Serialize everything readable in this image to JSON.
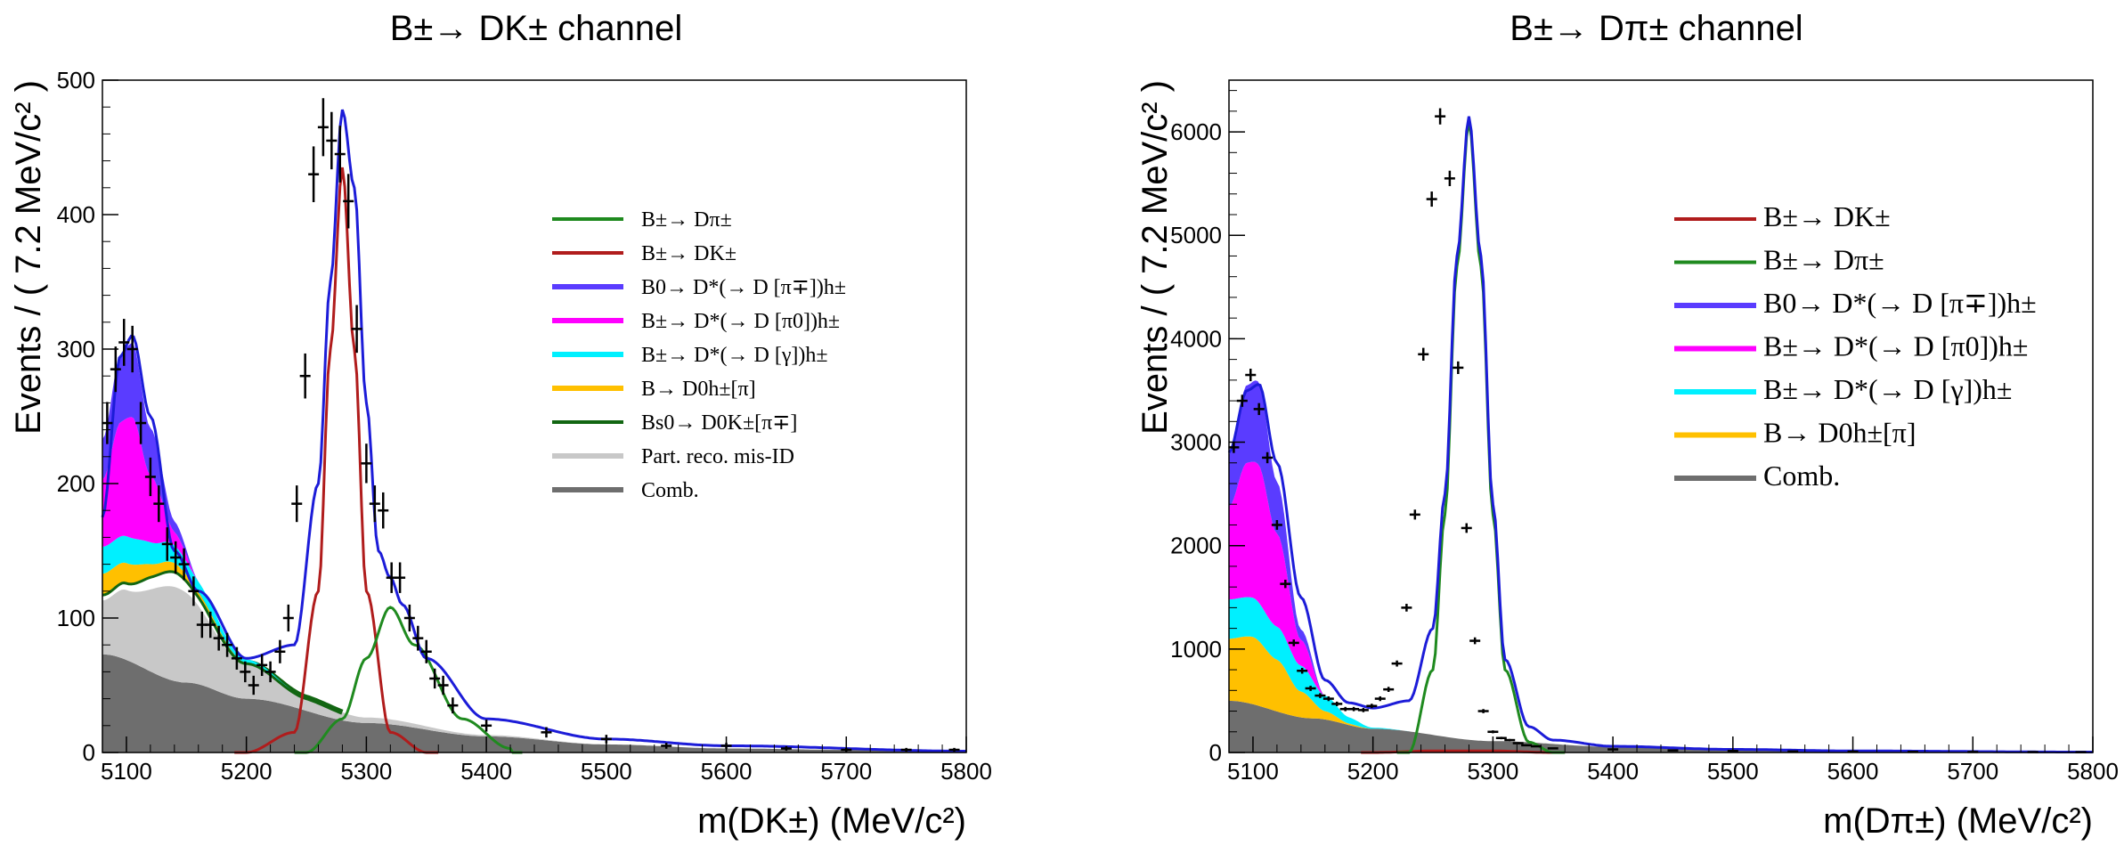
{
  "chart_data": [
    {
      "type": "area",
      "title": "B±→ DK± channel",
      "xlabel": "m(DK±) (MeV/c²)",
      "ylabel": "Events / ( 7.2 MeV/c² )",
      "xlim": [
        5080,
        5800
      ],
      "ylim": [
        0,
        500
      ],
      "xticks": [
        "5100",
        "5200",
        "5300",
        "5400",
        "5500",
        "5600",
        "5700",
        "5800"
      ],
      "yticks": [
        "0",
        "100",
        "200",
        "300",
        "400",
        "500"
      ],
      "legend_position": "upper-right",
      "legend": [
        {
          "label": "B±→ Dπ±",
          "style": "line",
          "color": "#1f8a1f"
        },
        {
          "label": "B±→ DK±",
          "style": "line",
          "color": "#b01c1c"
        },
        {
          "label": "B0→ D*(→ D [π∓])h±",
          "style": "fill",
          "color": "#5a3cff"
        },
        {
          "label": "B±→ D*(→ D [π0])h±",
          "style": "fill",
          "color": "#ff00ff"
        },
        {
          "label": "B±→ D*(→ D [γ])h±",
          "style": "fill",
          "color": "#00f0ff"
        },
        {
          "label": "B→ D0h±[π]",
          "style": "fill",
          "color": "#ffc000"
        },
        {
          "label": "Bs0→ D0K±[π∓]",
          "style": "line",
          "color": "#126612"
        },
        {
          "label": "Part. reco. mis-ID",
          "style": "fill",
          "color": "#c8c8c8"
        },
        {
          "label": "Comb.",
          "style": "fill",
          "color": "#6e6e6e"
        }
      ],
      "series": [
        {
          "name": "Comb.",
          "x": [
            5080,
            5150,
            5200,
            5300,
            5400,
            5500,
            5600,
            5700,
            5800
          ],
          "values": [
            73,
            52,
            40,
            22,
            12,
            6,
            3,
            2,
            1
          ]
        },
        {
          "name": "Part. reco. mis-ID",
          "x": [
            5080,
            5100,
            5140,
            5200,
            5250,
            5300,
            5400,
            5500,
            5800
          ],
          "values": [
            40,
            52,
            70,
            25,
            10,
            4,
            1,
            0,
            0
          ]
        },
        {
          "name": "Bs0→ D0K±[π∓]",
          "x": [
            5080,
            5100,
            5120,
            5140,
            5160,
            5200,
            5240
          ],
          "values": [
            5,
            6,
            10,
            12,
            8,
            2,
            0
          ]
        },
        {
          "name": "B→ D0h±[π]",
          "x": [
            5080,
            5100,
            5130,
            5160,
            5200
          ],
          "values": [
            15,
            14,
            7,
            2,
            0
          ]
        },
        {
          "name": "B±→ D*(→ D [γ])h±",
          "x": [
            5080,
            5100,
            5130,
            5160,
            5200,
            5240
          ],
          "values": [
            20,
            20,
            15,
            8,
            2,
            0
          ]
        },
        {
          "name": "B±→ D*(→ D [π0])h±",
          "x": [
            5080,
            5095,
            5105,
            5120,
            5140,
            5160
          ],
          "values": [
            50,
            85,
            90,
            50,
            10,
            0
          ]
        },
        {
          "name": "B0→ D*(→ D [π∓])h±",
          "x": [
            5080,
            5095,
            5105,
            5120,
            5140,
            5160
          ],
          "values": [
            30,
            50,
            55,
            35,
            8,
            0
          ]
        },
        {
          "name": "B±→ DK±",
          "x": [
            5200,
            5240,
            5260,
            5270,
            5280,
            5290,
            5300,
            5320,
            5350
          ],
          "values": [
            0,
            15,
            120,
            300,
            435,
            300,
            120,
            15,
            0
          ]
        },
        {
          "name": "B±→ Dπ±",
          "x": [
            5250,
            5280,
            5300,
            5320,
            5340,
            5380,
            5420
          ],
          "values": [
            0,
            25,
            70,
            108,
            80,
            25,
            3
          ]
        },
        {
          "name": "Total fit",
          "x": [
            5080,
            5095,
            5105,
            5120,
            5140,
            5160,
            5200,
            5240,
            5260,
            5270,
            5280,
            5290,
            5300,
            5310,
            5320,
            5330,
            5350,
            5400,
            5500,
            5600,
            5800
          ],
          "values": [
            175,
            295,
            310,
            250,
            150,
            120,
            70,
            80,
            200,
            350,
            478,
            420,
            260,
            150,
            130,
            110,
            70,
            25,
            10,
            5,
            1
          ]
        },
        {
          "name": "Data",
          "x": [
            5084,
            5091,
            5098,
            5105,
            5112,
            5120,
            5127,
            5134,
            5141,
            5148,
            5156,
            5163,
            5170,
            5177,
            5184,
            5192,
            5199,
            5206,
            5213,
            5220,
            5228,
            5235,
            5242,
            5249,
            5256,
            5264,
            5271,
            5278,
            5285,
            5292,
            5300,
            5307,
            5314,
            5321,
            5328,
            5336,
            5343,
            5350,
            5357,
            5364,
            5372,
            5400,
            5450,
            5500,
            5550,
            5600,
            5650,
            5700,
            5750,
            5790
          ],
          "values": [
            245,
            285,
            305,
            300,
            245,
            205,
            185,
            155,
            145,
            140,
            120,
            95,
            95,
            85,
            80,
            70,
            60,
            50,
            65,
            60,
            75,
            100,
            185,
            280,
            430,
            465,
            455,
            445,
            410,
            315,
            215,
            185,
            180,
            130,
            130,
            100,
            85,
            75,
            55,
            50,
            35,
            20,
            15,
            10,
            5,
            5,
            3,
            2,
            2,
            2
          ]
        }
      ]
    },
    {
      "type": "area",
      "title": "B±→ Dπ± channel",
      "xlabel": "m(Dπ±) (MeV/c²)",
      "ylabel": "Events / ( 7.2 MeV/c² )",
      "xlim": [
        5080,
        5800
      ],
      "ylim": [
        0,
        6500
      ],
      "xticks": [
        "5100",
        "5200",
        "5300",
        "5400",
        "5500",
        "5600",
        "5700",
        "5800"
      ],
      "yticks": [
        "0",
        "1000",
        "2000",
        "3000",
        "4000",
        "5000",
        "6000"
      ],
      "legend_position": "upper-right",
      "legend": [
        {
          "label": "B±→ DK±",
          "style": "line",
          "color": "#b01c1c"
        },
        {
          "label": "B±→ Dπ±",
          "style": "line",
          "color": "#1f8a1f"
        },
        {
          "label": "B0→ D*(→ D [π∓])h±",
          "style": "fill",
          "color": "#5a3cff"
        },
        {
          "label": "B±→ D*(→ D [π0])h±",
          "style": "fill",
          "color": "#ff00ff"
        },
        {
          "label": "B±→ D*(→ D [γ])h±",
          "style": "fill",
          "color": "#00f0ff"
        },
        {
          "label": "B→ D0h±[π]",
          "style": "fill",
          "color": "#ffc000"
        },
        {
          "label": "Comb.",
          "style": "fill",
          "color": "#6e6e6e"
        }
      ],
      "series": [
        {
          "name": "Comb.",
          "x": [
            5080,
            5150,
            5200,
            5300,
            5400,
            5500,
            5600,
            5700,
            5800
          ],
          "values": [
            500,
            330,
            230,
            110,
            55,
            30,
            15,
            8,
            4
          ]
        },
        {
          "name": "B→ D0h±[π]",
          "x": [
            5080,
            5100,
            5120,
            5140,
            5160,
            5180,
            5200
          ],
          "values": [
            600,
            650,
            500,
            250,
            80,
            15,
            0
          ]
        },
        {
          "name": "B±→ D*(→ D [γ])h±",
          "x": [
            5080,
            5100,
            5120,
            5140,
            5160,
            5180,
            5200,
            5230
          ],
          "values": [
            380,
            380,
            320,
            250,
            150,
            60,
            10,
            0
          ]
        },
        {
          "name": "B±→ D*(→ D [π0])h±",
          "x": [
            5080,
            5095,
            5105,
            5120,
            5140,
            5160
          ],
          "values": [
            900,
            1300,
            1330,
            900,
            250,
            0
          ]
        },
        {
          "name": "B0→ D*(→ D [π∓])h±",
          "x": [
            5080,
            5095,
            5105,
            5120,
            5140,
            5160
          ],
          "values": [
            500,
            750,
            800,
            500,
            100,
            0
          ]
        },
        {
          "name": "B±→ DK±",
          "x": [
            5200,
            5250,
            5300,
            5350
          ],
          "values": [
            0,
            15,
            15,
            0
          ]
        },
        {
          "name": "B±→ Dπ±",
          "x": [
            5230,
            5250,
            5260,
            5270,
            5280,
            5290,
            5300,
            5310,
            5330,
            5350
          ],
          "values": [
            0,
            800,
            2300,
            4700,
            6100,
            4700,
            2300,
            800,
            100,
            0
          ]
        },
        {
          "name": "Total fit",
          "x": [
            5080,
            5095,
            5105,
            5120,
            5140,
            5160,
            5180,
            5200,
            5230,
            5250,
            5260,
            5270,
            5280,
            5290,
            5300,
            5310,
            5330,
            5350,
            5400,
            5500,
            5600,
            5800
          ],
          "values": [
            2900,
            3500,
            3560,
            2800,
            1500,
            700,
            480,
            430,
            500,
            1200,
            2500,
            4800,
            6150,
            4800,
            2400,
            900,
            250,
            120,
            60,
            30,
            15,
            4
          ]
        },
        {
          "name": "Data",
          "x": [
            5084,
            5091,
            5098,
            5105,
            5112,
            5120,
            5127,
            5134,
            5141,
            5148,
            5156,
            5163,
            5170,
            5177,
            5184,
            5192,
            5199,
            5206,
            5213,
            5220,
            5228,
            5235,
            5242,
            5249,
            5256,
            5264,
            5271,
            5278,
            5285,
            5292,
            5300,
            5307,
            5314,
            5321,
            5328,
            5336,
            5350,
            5400,
            5450,
            5500,
            5550,
            5600,
            5650,
            5700,
            5750,
            5790
          ],
          "values": [
            2950,
            3400,
            3650,
            3320,
            2850,
            2200,
            1630,
            1060,
            790,
            620,
            550,
            520,
            470,
            420,
            420,
            410,
            450,
            520,
            610,
            860,
            1400,
            2300,
            3850,
            5350,
            6150,
            5550,
            3720,
            2170,
            1080,
            400,
            200,
            140,
            120,
            90,
            70,
            60,
            40,
            30,
            20,
            15,
            10,
            8,
            6,
            5,
            4,
            3
          ]
        }
      ]
    }
  ]
}
